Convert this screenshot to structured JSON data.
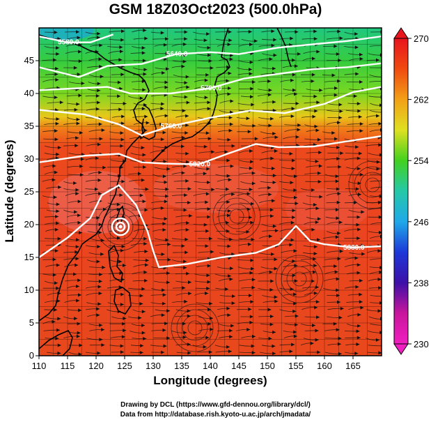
{
  "title": "GSM 18Z03Oct2023 (500.0hPa)",
  "xlabel": "Longitude (degrees)",
  "ylabel": "Latitude  (degrees)",
  "credits": {
    "line1": "Drawing by DCL (https://www.gfd-dennou.org/library/dcl/)",
    "line2": "Data from http://database.rish.kyoto-u.ac.jp/arch/jmadata/"
  },
  "chart_data": {
    "type": "heatmap",
    "xlim": [
      110,
      170
    ],
    "ylim": [
      0,
      50
    ],
    "x_ticks": [
      "110",
      "115",
      "120",
      "125",
      "130",
      "135",
      "140",
      "145",
      "150",
      "155",
      "160",
      "165"
    ],
    "y_ticks": [
      "0",
      "5",
      "10",
      "15",
      "20",
      "25",
      "30",
      "35",
      "40",
      "45"
    ],
    "grid": true,
    "colorbar": {
      "labels": [
        "270",
        "262",
        "254",
        "246",
        "238",
        "230"
      ],
      "min": 230,
      "max": 270
    },
    "contour_labels": [
      "5880.0",
      "5820.0",
      "5760.0",
      "5700.0",
      "5640.0",
      "5580.0"
    ],
    "contours": [
      {
        "label": "5880.0",
        "points": [
          [
            110,
            15
          ],
          [
            115,
            18
          ],
          [
            119,
            21
          ],
          [
            121,
            24.5
          ],
          [
            124,
            26
          ],
          [
            127,
            23
          ],
          [
            129,
            19
          ],
          [
            130,
            16
          ],
          [
            131,
            13.5
          ],
          [
            136,
            14
          ],
          [
            142,
            15
          ],
          [
            148,
            15.7
          ],
          [
            152,
            17
          ],
          [
            155,
            19.8
          ],
          [
            157.5,
            17.5
          ],
          [
            160,
            17
          ],
          [
            165,
            16.5
          ],
          [
            170,
            16.7
          ]
        ]
      },
      {
        "label": "5820.0",
        "points": [
          [
            110,
            29.5
          ],
          [
            118,
            30.5
          ],
          [
            124,
            30.8
          ],
          [
            128,
            29.5
          ],
          [
            132,
            29.3
          ],
          [
            138,
            29.2
          ],
          [
            143,
            30.8
          ],
          [
            148,
            32.3
          ],
          [
            152,
            31.8
          ],
          [
            158,
            31.9
          ],
          [
            164,
            32.7
          ],
          [
            170,
            33.5
          ]
        ]
      },
      {
        "label": "5760.0",
        "points": [
          [
            110,
            37.5
          ],
          [
            118,
            36.8
          ],
          [
            124,
            35.3
          ],
          [
            128,
            33.6
          ],
          [
            133,
            35
          ],
          [
            140,
            36.3
          ],
          [
            147,
            37.4
          ],
          [
            153,
            37
          ],
          [
            160,
            38.4
          ],
          [
            165,
            40.2
          ],
          [
            170,
            41
          ]
        ]
      },
      {
        "label": "5700.0",
        "points": [
          [
            110,
            40.5
          ],
          [
            117,
            40.8
          ],
          [
            122,
            41
          ],
          [
            126,
            40
          ],
          [
            133,
            40
          ],
          [
            140,
            40.8
          ],
          [
            146,
            42.3
          ],
          [
            152,
            43
          ],
          [
            158,
            43.7
          ],
          [
            164,
            44
          ],
          [
            170,
            44.6
          ]
        ]
      },
      {
        "label": "5640.0",
        "points": [
          [
            110,
            44
          ],
          [
            117,
            42.5
          ],
          [
            122,
            44.2
          ],
          [
            128,
            44.5
          ],
          [
            134,
            46
          ],
          [
            140,
            46.3
          ],
          [
            145,
            46
          ],
          [
            152,
            47
          ],
          [
            158,
            47.5
          ],
          [
            164,
            48
          ],
          [
            170,
            48.7
          ]
        ]
      },
      {
        "label": "5580.0",
        "points": [
          [
            110,
            48.7
          ],
          [
            115,
            47.8
          ],
          [
            119,
            47.8
          ],
          [
            123,
            49
          ]
        ]
      }
    ],
    "field": {
      "description": "500hPa temperature (K) shaded from 230 (magenta) to 270 (red)",
      "gradient_stops": [
        {
          "lat": 50,
          "value": 248
        },
        {
          "lat": 45,
          "value": 252
        },
        {
          "lat": 40,
          "value": 256
        },
        {
          "lat": 37,
          "value": 260
        },
        {
          "lat": 35,
          "value": 264
        },
        {
          "lat": 32,
          "value": 266
        },
        {
          "lat": 0,
          "value": 267
        }
      ]
    }
  },
  "colors": {
    "colorbar_stops": [
      "#e8141e",
      "#f04a10",
      "#f2a017",
      "#dfe021",
      "#43d11f",
      "#25c8a8",
      "#1fa9e8",
      "#1d38d8",
      "#3d10a8",
      "#c8169c",
      "#f020c0"
    ],
    "contour_line": "#ffffff",
    "streamline": "#000000",
    "coast": "#000000"
  }
}
